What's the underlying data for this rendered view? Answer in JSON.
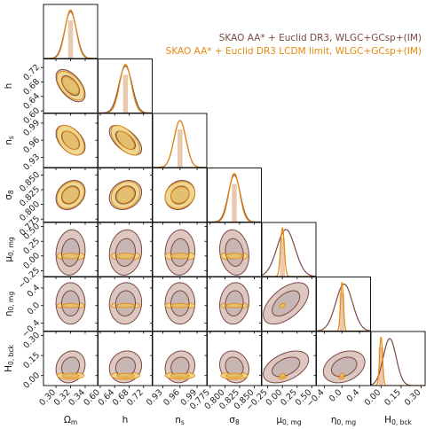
{
  "chart_data": {
    "type": "corner",
    "legend": {
      "placement": "top-right",
      "entries": [
        {
          "label": "SKAO AA* + Euclid DR3, WLGC+GCsp+(IM)",
          "color": "#7a4a42",
          "fill_inner": "#c7b6b3",
          "fill_outer": "#ddc7c1"
        },
        {
          "label": "SKAO AA* + Euclid DR3 LCDM limit, WLGC+GCsp+(IM)",
          "color": "#e8890c",
          "fill_inner": "#e6c16a",
          "fill_outer": "#efd98e"
        }
      ]
    },
    "parameters": [
      {
        "id": "Om",
        "label_main": "Ω",
        "label_sub": "m",
        "fiducial": 0.32,
        "range": [
          0.283,
          0.357
        ],
        "ticks": [
          0.3,
          0.32,
          0.34
        ],
        "tick_labels": [
          "0.30",
          "0.32",
          "0.34"
        ],
        "sigma": [
          0.008,
          0.0075
        ],
        "mean": [
          0.32,
          0.32
        ]
      },
      {
        "id": "h",
        "label_main": "h",
        "label_sub": "",
        "fiducial": 0.67,
        "range": [
          0.594,
          0.744
        ],
        "ticks": [
          0.6,
          0.64,
          0.68,
          0.72
        ],
        "tick_labels": [
          "0.60",
          "0.64",
          "0.68",
          "0.72"
        ],
        "sigma": [
          0.018,
          0.016
        ],
        "mean": [
          0.67,
          0.67
        ]
      },
      {
        "id": "ns",
        "label_main": "n",
        "label_sub": "s",
        "fiducial": 0.96,
        "range": [
          0.912,
          1.007
        ],
        "ticks": [
          0.93,
          0.96,
          0.99
        ],
        "tick_labels": [
          "0.93",
          "0.96",
          "0.99"
        ],
        "sigma": [
          0.0105,
          0.0105
        ],
        "mean": [
          0.96,
          0.96
        ]
      },
      {
        "id": "s8",
        "label_main": "σ",
        "label_sub": "8",
        "fiducial": 0.816,
        "range": [
          0.77,
          0.862
        ],
        "ticks": [
          0.775,
          0.8,
          0.825,
          0.85
        ],
        "tick_labels": [
          "0.775",
          "0.800",
          "0.825",
          "0.850"
        ],
        "sigma": [
          0.01,
          0.0092
        ],
        "mean": [
          0.816,
          0.816
        ]
      },
      {
        "id": "mu0",
        "label_main": "μ",
        "label_sub": "0, mg",
        "fiducial": 0.0,
        "range": [
          -0.35,
          0.57
        ],
        "ticks": [
          -0.25,
          0.0,
          0.25,
          0.5
        ],
        "tick_labels": [
          "−0.25",
          "0.00",
          "0.25",
          "0.50"
        ],
        "sigma": [
          0.155,
          0.032
        ],
        "mean": [
          0.06,
          0.0
        ]
      },
      {
        "id": "eta0",
        "label_main": "η",
        "label_sub": "0, mg",
        "fiducial": 0.0,
        "range": [
          -0.58,
          0.65
        ],
        "ticks": [
          -0.4,
          0.0,
          0.4
        ],
        "tick_labels": [
          "−0.4",
          "0.0",
          "0.4"
        ],
        "sigma": [
          0.19,
          0.032
        ],
        "mean": [
          0.05,
          0.0
        ]
      },
      {
        "id": "H0",
        "label_main": "H",
        "label_sub": "0, bck",
        "fiducial": 0.0,
        "range": [
          -0.075,
          0.33
        ],
        "ticks": [
          0.0,
          0.15,
          0.3
        ],
        "tick_labels": [
          "0.00",
          "0.15",
          "0.30"
        ],
        "sigma": [
          0.048,
          0.011
        ],
        "mean": [
          0.065,
          0.0
        ]
      }
    ],
    "correlations": {
      "1,0": [
        -0.55,
        -0.55
      ],
      "2,0": [
        -0.45,
        -0.45
      ],
      "2,1": [
        -0.6,
        -0.6
      ],
      "3,0": [
        0.25,
        0.25
      ],
      "3,1": [
        0.2,
        0.2
      ],
      "3,2": [
        0.15,
        0.15
      ],
      "4,0": [
        0.1,
        0.0
      ],
      "4,1": [
        0.1,
        0.0
      ],
      "4,2": [
        0.05,
        0.0
      ],
      "4,3": [
        -0.15,
        0.0
      ],
      "5,0": [
        0.0,
        0.0
      ],
      "5,1": [
        0.05,
        0.0
      ],
      "5,2": [
        0.0,
        0.0
      ],
      "5,3": [
        0.1,
        0.0
      ],
      "5,4": [
        0.55,
        0.4
      ],
      "6,0": [
        0.15,
        0.0
      ],
      "6,1": [
        0.1,
        0.0
      ],
      "6,2": [
        0.1,
        0.0
      ],
      "6,3": [
        -0.15,
        0.0
      ],
      "6,4": [
        0.45,
        0.2
      ],
      "6,5": [
        0.3,
        0.2
      ]
    },
    "contour_levels_sigma": [
      1,
      2
    ]
  }
}
